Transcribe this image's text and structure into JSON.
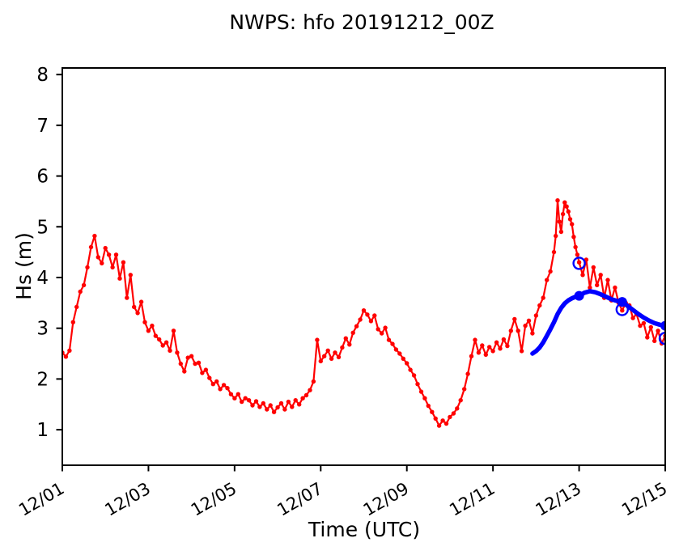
{
  "chart_data": {
    "type": "line",
    "title": "NWPS: hfo 20191212_00Z",
    "xlabel": "Time (UTC)",
    "ylabel": "Hs (m)",
    "grid": false,
    "legend_position": "none",
    "x_axis": {
      "unit": "hours since 2019-12-01 00:00 UTC",
      "lim": [
        0,
        336
      ],
      "tick_rotation_deg": 30,
      "ticks": [
        {
          "hour": 0,
          "label": "12/01"
        },
        {
          "hour": 48,
          "label": "12/03"
        },
        {
          "hour": 96,
          "label": "12/05"
        },
        {
          "hour": 144,
          "label": "12/07"
        },
        {
          "hour": 192,
          "label": "12/09"
        },
        {
          "hour": 240,
          "label": "12/11"
        },
        {
          "hour": 288,
          "label": "12/13"
        },
        {
          "hour": 336,
          "label": "12/15"
        }
      ]
    },
    "y_axis": {
      "lim": [
        0.3,
        8.13
      ],
      "ticks": [
        1,
        2,
        3,
        4,
        5,
        6,
        7,
        8
      ]
    },
    "series": [
      {
        "name": "observed-hs",
        "label": "Observed significant wave height",
        "color": "#ff0000",
        "marker": "dot",
        "marker_radius": 2.7,
        "line_width": 2.2,
        "points": [
          [
            0,
            2.52
          ],
          [
            2,
            2.44
          ],
          [
            4,
            2.56
          ],
          [
            6,
            3.12
          ],
          [
            8,
            3.42
          ],
          [
            10,
            3.72
          ],
          [
            12,
            3.85
          ],
          [
            14,
            4.2
          ],
          [
            16,
            4.6
          ],
          [
            18,
            4.82
          ],
          [
            20,
            4.4
          ],
          [
            22,
            4.28
          ],
          [
            24,
            4.58
          ],
          [
            26,
            4.45
          ],
          [
            28,
            4.2
          ],
          [
            30,
            4.45
          ],
          [
            32,
            3.98
          ],
          [
            34,
            4.3
          ],
          [
            36,
            3.6
          ],
          [
            38,
            4.05
          ],
          [
            40,
            3.42
          ],
          [
            42,
            3.3
          ],
          [
            44,
            3.52
          ],
          [
            46,
            3.12
          ],
          [
            48,
            2.95
          ],
          [
            50,
            3.05
          ],
          [
            52,
            2.85
          ],
          [
            54,
            2.78
          ],
          [
            56,
            2.66
          ],
          [
            58,
            2.72
          ],
          [
            60,
            2.56
          ],
          [
            62,
            2.95
          ],
          [
            64,
            2.52
          ],
          [
            66,
            2.3
          ],
          [
            68,
            2.15
          ],
          [
            70,
            2.42
          ],
          [
            72,
            2.45
          ],
          [
            74,
            2.3
          ],
          [
            76,
            2.32
          ],
          [
            78,
            2.12
          ],
          [
            80,
            2.18
          ],
          [
            82,
            2.02
          ],
          [
            84,
            1.9
          ],
          [
            86,
            1.95
          ],
          [
            88,
            1.8
          ],
          [
            90,
            1.88
          ],
          [
            92,
            1.82
          ],
          [
            94,
            1.7
          ],
          [
            96,
            1.62
          ],
          [
            98,
            1.7
          ],
          [
            100,
            1.55
          ],
          [
            102,
            1.62
          ],
          [
            104,
            1.58
          ],
          [
            106,
            1.48
          ],
          [
            108,
            1.56
          ],
          [
            110,
            1.45
          ],
          [
            112,
            1.52
          ],
          [
            114,
            1.4
          ],
          [
            116,
            1.48
          ],
          [
            118,
            1.35
          ],
          [
            120,
            1.44
          ],
          [
            122,
            1.52
          ],
          [
            124,
            1.4
          ],
          [
            126,
            1.55
          ],
          [
            128,
            1.45
          ],
          [
            130,
            1.58
          ],
          [
            132,
            1.5
          ],
          [
            134,
            1.62
          ],
          [
            136,
            1.68
          ],
          [
            138,
            1.78
          ],
          [
            140,
            1.95
          ],
          [
            142,
            2.77
          ],
          [
            144,
            2.35
          ],
          [
            146,
            2.45
          ],
          [
            148,
            2.56
          ],
          [
            150,
            2.4
          ],
          [
            152,
            2.52
          ],
          [
            154,
            2.43
          ],
          [
            156,
            2.62
          ],
          [
            158,
            2.8
          ],
          [
            160,
            2.68
          ],
          [
            162,
            2.91
          ],
          [
            164,
            3.04
          ],
          [
            166,
            3.17
          ],
          [
            168,
            3.35
          ],
          [
            170,
            3.27
          ],
          [
            172,
            3.14
          ],
          [
            174,
            3.25
          ],
          [
            176,
            2.98
          ],
          [
            178,
            2.9
          ],
          [
            180,
            3.01
          ],
          [
            182,
            2.77
          ],
          [
            184,
            2.69
          ],
          [
            186,
            2.58
          ],
          [
            188,
            2.5
          ],
          [
            190,
            2.4
          ],
          [
            192,
            2.31
          ],
          [
            194,
            2.18
          ],
          [
            196,
            2.07
          ],
          [
            198,
            1.9
          ],
          [
            200,
            1.75
          ],
          [
            202,
            1.62
          ],
          [
            204,
            1.47
          ],
          [
            206,
            1.35
          ],
          [
            208,
            1.22
          ],
          [
            210,
            1.08
          ],
          [
            212,
            1.18
          ],
          [
            214,
            1.12
          ],
          [
            216,
            1.25
          ],
          [
            218,
            1.32
          ],
          [
            220,
            1.42
          ],
          [
            222,
            1.58
          ],
          [
            224,
            1.8
          ],
          [
            226,
            2.1
          ],
          [
            228,
            2.45
          ],
          [
            230,
            2.77
          ],
          [
            232,
            2.52
          ],
          [
            234,
            2.66
          ],
          [
            236,
            2.48
          ],
          [
            238,
            2.63
          ],
          [
            240,
            2.55
          ],
          [
            242,
            2.72
          ],
          [
            244,
            2.6
          ],
          [
            246,
            2.78
          ],
          [
            248,
            2.65
          ],
          [
            250,
            2.95
          ],
          [
            252,
            3.18
          ],
          [
            254,
            2.95
          ],
          [
            256,
            2.55
          ],
          [
            258,
            3.05
          ],
          [
            260,
            3.15
          ],
          [
            262,
            2.9
          ],
          [
            264,
            3.25
          ],
          [
            266,
            3.45
          ],
          [
            268,
            3.6
          ],
          [
            270,
            3.95
          ],
          [
            272,
            4.12
          ],
          [
            274,
            4.5
          ],
          [
            275,
            4.82
          ],
          [
            276,
            5.52
          ],
          [
            277,
            5.1
          ],
          [
            278,
            4.9
          ],
          [
            279,
            5.25
          ],
          [
            280,
            5.48
          ],
          [
            281,
            5.4
          ],
          [
            282,
            5.3
          ],
          [
            283,
            5.15
          ],
          [
            284,
            5.05
          ],
          [
            285,
            4.8
          ],
          [
            286,
            4.6
          ],
          [
            287,
            4.45
          ],
          [
            288,
            4.3
          ],
          [
            290,
            4.05
          ],
          [
            292,
            4.35
          ],
          [
            294,
            3.8
          ],
          [
            296,
            4.2
          ],
          [
            298,
            3.85
          ],
          [
            300,
            4.05
          ],
          [
            302,
            3.6
          ],
          [
            304,
            3.95
          ],
          [
            306,
            3.55
          ],
          [
            308,
            3.8
          ],
          [
            310,
            3.5
          ],
          [
            312,
            3.35
          ],
          [
            314,
            3.5
          ],
          [
            316,
            3.45
          ],
          [
            318,
            3.2
          ],
          [
            320,
            3.28
          ],
          [
            322,
            3.05
          ],
          [
            324,
            3.1
          ],
          [
            326,
            2.82
          ],
          [
            328,
            3.02
          ],
          [
            330,
            2.75
          ],
          [
            332,
            2.95
          ],
          [
            334,
            2.7
          ],
          [
            336,
            2.85
          ]
        ]
      },
      {
        "name": "nwps-forecast-hs",
        "label": "NWPS model forecast Hs (cycle 20191212_00Z)",
        "color": "#0000ff",
        "marker": "none",
        "marker_radius": 0,
        "line_width": 5.5,
        "points": [
          [
            262,
            2.5
          ],
          [
            264,
            2.55
          ],
          [
            266,
            2.62
          ],
          [
            268,
            2.72
          ],
          [
            270,
            2.85
          ],
          [
            272,
            2.98
          ],
          [
            274,
            3.12
          ],
          [
            276,
            3.28
          ],
          [
            278,
            3.4
          ],
          [
            280,
            3.49
          ],
          [
            282,
            3.55
          ],
          [
            284,
            3.59
          ],
          [
            286,
            3.62
          ],
          [
            288,
            3.64
          ],
          [
            291,
            3.7
          ],
          [
            294,
            3.73
          ],
          [
            297,
            3.71
          ],
          [
            300,
            3.67
          ],
          [
            303,
            3.62
          ],
          [
            306,
            3.57
          ],
          [
            309,
            3.54
          ],
          [
            312,
            3.52
          ],
          [
            315,
            3.44
          ],
          [
            318,
            3.36
          ],
          [
            321,
            3.28
          ],
          [
            324,
            3.21
          ],
          [
            327,
            3.15
          ],
          [
            330,
            3.1
          ],
          [
            333,
            3.07
          ],
          [
            336,
            3.05
          ]
        ]
      },
      {
        "name": "forecast-24h-markers",
        "label": "Forecast value at 24-h verification times",
        "color": "#0000ff",
        "marker": "filled-circle",
        "marker_radius": 6,
        "line_width": 0,
        "points": [
          [
            288,
            3.64
          ],
          [
            312,
            3.52
          ],
          [
            336,
            3.05
          ]
        ]
      },
      {
        "name": "observed-24h-markers",
        "label": "Observed value at 24-h verification times",
        "color": "#0000ff",
        "marker": "open-circle",
        "marker_radius": 7,
        "marker_stroke_width": 2.4,
        "line_width": 0,
        "points": [
          [
            288,
            4.28
          ],
          [
            312,
            3.37
          ],
          [
            336,
            2.8
          ]
        ]
      }
    ]
  }
}
